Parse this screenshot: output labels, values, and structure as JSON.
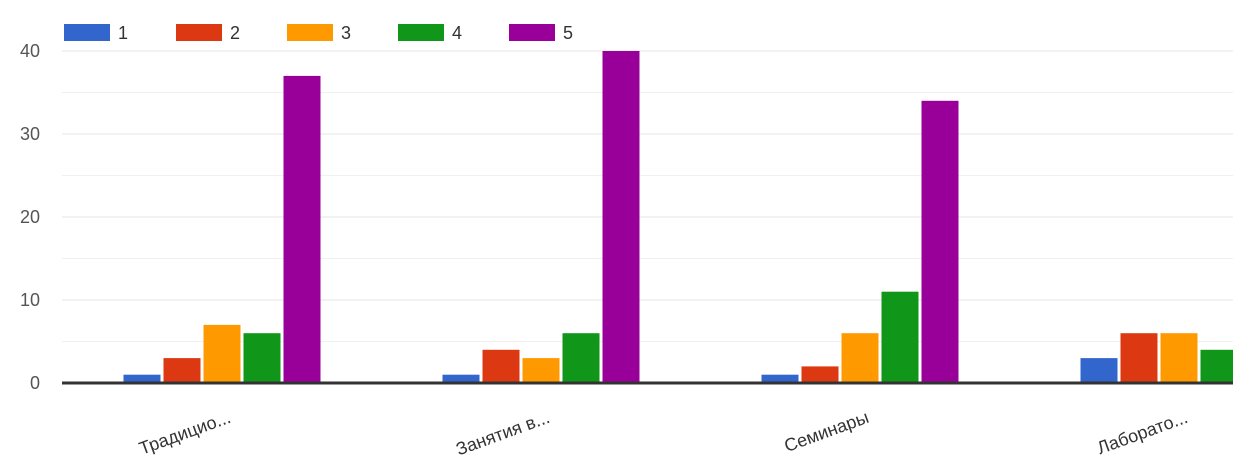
{
  "chart_data": {
    "type": "bar",
    "categories": [
      "Традицио...",
      "Занятия в...",
      "Семинары",
      "Лаборато..."
    ],
    "series": [
      {
        "name": "1",
        "color": "#3366cc",
        "values": [
          1,
          1,
          1,
          3
        ]
      },
      {
        "name": "2",
        "color": "#dc3912",
        "values": [
          3,
          4,
          2,
          6
        ]
      },
      {
        "name": "3",
        "color": "#ff9900",
        "values": [
          7,
          3,
          6,
          6
        ]
      },
      {
        "name": "4",
        "color": "#109618",
        "values": [
          6,
          6,
          11,
          4
        ]
      },
      {
        "name": "5",
        "color": "#990099",
        "values": [
          37,
          40,
          34,
          0
        ]
      }
    ],
    "y_ticks": [
      "0",
      "10",
      "20",
      "30",
      "40"
    ],
    "ylim": [
      0,
      40
    ],
    "grid": true,
    "legend_position": "top-left"
  }
}
